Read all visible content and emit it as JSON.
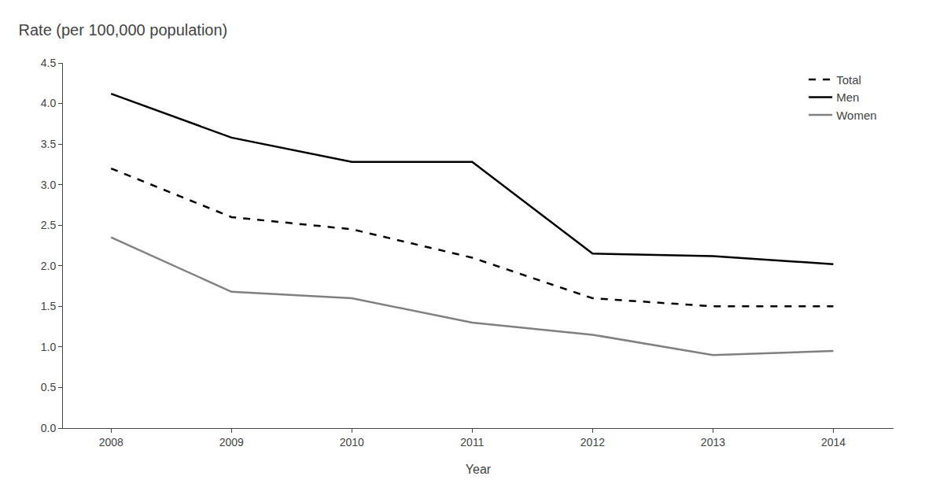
{
  "chart_data": {
    "type": "line",
    "title": "Rate (per 100,000 population)",
    "xlabel": "Year",
    "x": [
      2008,
      2009,
      2010,
      2011,
      2012,
      2013,
      2014
    ],
    "series": [
      {
        "name": "Total",
        "color": "#000000",
        "line_style": "dashed",
        "values": [
          3.2,
          2.6,
          2.45,
          2.1,
          1.6,
          1.5,
          1.5
        ]
      },
      {
        "name": "Men",
        "color": "#000000",
        "line_style": "solid",
        "values": [
          4.12,
          3.58,
          3.28,
          3.28,
          2.15,
          2.12,
          2.02
        ]
      },
      {
        "name": "Women",
        "color": "#808080",
        "line_style": "solid",
        "values": [
          2.35,
          1.68,
          1.6,
          1.3,
          1.15,
          0.9,
          0.95
        ]
      }
    ],
    "xlim": [
      2007.6,
      2014.5
    ],
    "xticks": [
      2008,
      2009,
      2010,
      2011,
      2012,
      2013,
      2014
    ],
    "ylim": [
      0.0,
      4.5
    ],
    "yticks": [
      {
        "value": 0,
        "label": "0.0"
      },
      0.5,
      {
        "value": 1,
        "label": "1.0"
      },
      1.5,
      {
        "value": 2,
        "label": "2.0"
      },
      2.5,
      {
        "value": 3,
        "label": "3.0"
      },
      3.5,
      {
        "value": 4,
        "label": "4.0"
      },
      4.5
    ],
    "grid": false,
    "legend": "upper right"
  }
}
